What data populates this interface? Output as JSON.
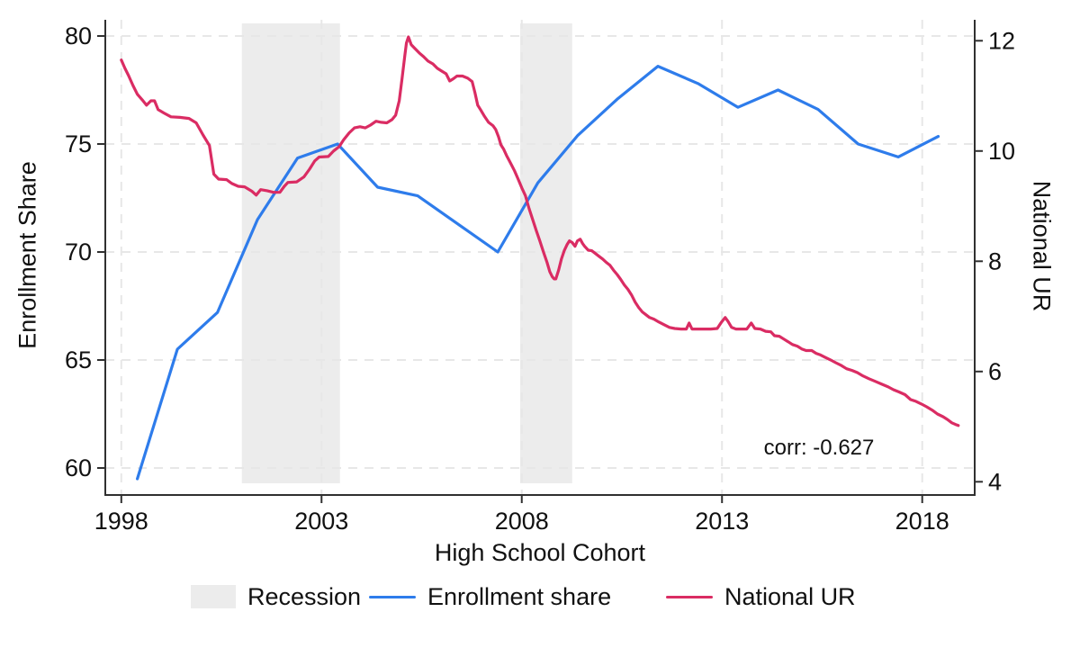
{
  "figure": {
    "axis_titles": {
      "left": "Enrollment Share",
      "right": "National UR",
      "bottom": "High School Cohort"
    },
    "annotation_text": "corr: -0.627",
    "legend": {
      "position": "bottom",
      "items": [
        {
          "kind": "swatch",
          "label": "Recession"
        },
        {
          "kind": "line",
          "label": "Enrollment share",
          "color_key": "enrollment"
        },
        {
          "kind": "line",
          "label": "National UR",
          "color_key": "ur"
        }
      ]
    },
    "colors": {
      "enrollment": "#2e7ceb",
      "ur": "#da2c63",
      "recession_band": "#ececec",
      "grid": "#e7e7e7",
      "axis": "#303030",
      "text": "#111111",
      "background": "#ffffff"
    }
  },
  "chart_data": {
    "type": "line",
    "title": "",
    "xlabel": "High School Cohort",
    "ylabel_left": "Enrollment Share",
    "ylabel_right": "National UR",
    "xlim": [
      1997.6,
      2019.31
    ],
    "x_ticks": [
      1998,
      2003,
      2008,
      2013,
      2018
    ],
    "left_axis": {
      "label": "Enrollment Share",
      "ticks": [
        60,
        65,
        70,
        75,
        80
      ],
      "lim": [
        58.75,
        80.75
      ]
    },
    "right_axis": {
      "label": "National UR",
      "ticks": [
        4,
        6,
        8,
        10,
        12
      ],
      "lim": [
        3.76,
        12.38
      ]
    },
    "grid": {
      "shown": true,
      "dashed": true
    },
    "legend_position": "bottom",
    "recession_bands": [
      [
        2001.01,
        2003.46
      ],
      [
        2007.96,
        2009.26
      ]
    ],
    "annotation": {
      "text": "corr: -0.627",
      "x": 2015.42,
      "y_left_axis": 60.9
    },
    "series": [
      {
        "name": "Enrollment share",
        "axis": "left",
        "color_key": "enrollment",
        "x": [
          1998.4,
          1999.4,
          2000.4,
          2001.4,
          2002.4,
          2003.4,
          2004.4,
          2005.4,
          2006.4,
          2007.4,
          2008.4,
          2009.4,
          2010.4,
          2011.4,
          2012.4,
          2013.4,
          2014.4,
          2015.4,
          2016.4,
          2017.4,
          2018.4
        ],
        "y": [
          59.5,
          65.5,
          67.2,
          71.5,
          74.35,
          75.0,
          73.0,
          72.6,
          71.3,
          70.0,
          73.2,
          75.4,
          77.1,
          78.6,
          77.8,
          76.7,
          77.5,
          76.6,
          75.0,
          74.4,
          75.35
        ]
      },
      {
        "name": "National UR",
        "axis": "right",
        "color_key": "ur",
        "x": [
          1998.0,
          1998.09,
          1998.18,
          1998.29,
          1998.4,
          1998.52,
          1998.63,
          1998.74,
          1998.83,
          1998.92,
          1999.06,
          1999.24,
          1999.46,
          1999.69,
          1999.87,
          2000.04,
          2000.2,
          2000.31,
          2000.43,
          2000.63,
          2000.76,
          2000.92,
          2001.08,
          2001.26,
          2001.37,
          2001.48,
          2001.64,
          2001.8,
          2001.96,
          2002.07,
          2002.16,
          2002.38,
          2002.56,
          2002.7,
          2002.83,
          2002.94,
          2003.17,
          2003.3,
          2003.44,
          2003.55,
          2003.69,
          2003.82,
          2003.96,
          2004.09,
          2004.22,
          2004.36,
          2004.49,
          2004.63,
          2004.76,
          2004.85,
          2004.94,
          2005.01,
          2005.08,
          2005.12,
          2005.17,
          2005.24,
          2005.33,
          2005.44,
          2005.55,
          2005.66,
          2005.78,
          2005.89,
          2006.0,
          2006.11,
          2006.2,
          2006.29,
          2006.38,
          2006.52,
          2006.65,
          2006.76,
          2006.83,
          2006.9,
          2006.97,
          2007.06,
          2007.17,
          2007.28,
          2007.35,
          2007.42,
          2007.48,
          2007.55,
          2007.62,
          2007.69,
          2007.75,
          2007.82,
          2007.91,
          2008.0,
          2008.09,
          2008.18,
          2008.27,
          2008.36,
          2008.45,
          2008.54,
          2008.63,
          2008.7,
          2008.76,
          2008.81,
          2008.85,
          2008.92,
          2008.99,
          2009.06,
          2009.13,
          2009.19,
          2009.26,
          2009.33,
          2009.39,
          2009.46,
          2009.52,
          2009.57,
          2009.66,
          2009.75,
          2009.84,
          2009.93,
          2010.02,
          2010.11,
          2010.2,
          2010.29,
          2010.38,
          2010.47,
          2010.56,
          2010.65,
          2010.74,
          2010.83,
          2010.92,
          2011.01,
          2011.1,
          2011.19,
          2011.3,
          2011.42,
          2011.55,
          2011.69,
          2011.82,
          2011.98,
          2012.11,
          2012.18,
          2012.25,
          2012.4,
          2012.56,
          2012.72,
          2012.88,
          2012.99,
          2013.08,
          2013.15,
          2013.24,
          2013.35,
          2013.48,
          2013.62,
          2013.73,
          2013.82,
          2013.96,
          2014.09,
          2014.22,
          2014.31,
          2014.43,
          2014.54,
          2014.65,
          2014.76,
          2014.88,
          2014.99,
          2015.1,
          2015.24,
          2015.35,
          2015.46,
          2015.57,
          2015.71,
          2015.84,
          2015.98,
          2016.11,
          2016.25,
          2016.38,
          2016.52,
          2016.67,
          2016.83,
          2016.99,
          2017.15,
          2017.28,
          2017.42,
          2017.57,
          2017.71,
          2017.84,
          2017.98,
          2018.11,
          2018.25,
          2018.38,
          2018.52,
          2018.63,
          2018.74,
          2018.83,
          2018.9
        ],
        "y": [
          11.65,
          11.5,
          11.37,
          11.19,
          11.03,
          10.93,
          10.83,
          10.91,
          10.91,
          10.75,
          10.69,
          10.62,
          10.61,
          10.59,
          10.51,
          10.29,
          10.1,
          9.58,
          9.49,
          9.48,
          9.41,
          9.36,
          9.35,
          9.27,
          9.2,
          9.3,
          9.28,
          9.25,
          9.25,
          9.36,
          9.43,
          9.44,
          9.53,
          9.67,
          9.82,
          9.89,
          9.9,
          10.0,
          10.08,
          10.2,
          10.33,
          10.42,
          10.44,
          10.42,
          10.47,
          10.54,
          10.52,
          10.51,
          10.57,
          10.65,
          10.91,
          11.31,
          11.73,
          11.96,
          12.07,
          11.93,
          11.86,
          11.78,
          11.71,
          11.63,
          11.58,
          11.5,
          11.45,
          11.4,
          11.27,
          11.31,
          11.36,
          11.36,
          11.32,
          11.26,
          11.06,
          10.83,
          10.75,
          10.64,
          10.52,
          10.46,
          10.39,
          10.26,
          10.11,
          10.03,
          9.92,
          9.82,
          9.74,
          9.64,
          9.49,
          9.33,
          9.19,
          8.96,
          8.76,
          8.56,
          8.37,
          8.17,
          7.98,
          7.81,
          7.72,
          7.68,
          7.68,
          7.84,
          8.04,
          8.19,
          8.3,
          8.37,
          8.34,
          8.27,
          8.37,
          8.4,
          8.32,
          8.27,
          8.2,
          8.19,
          8.14,
          8.09,
          8.04,
          7.98,
          7.93,
          7.84,
          7.76,
          7.67,
          7.57,
          7.49,
          7.39,
          7.26,
          7.16,
          7.08,
          7.03,
          6.98,
          6.95,
          6.9,
          6.85,
          6.8,
          6.78,
          6.77,
          6.77,
          6.88,
          6.77,
          6.77,
          6.77,
          6.77,
          6.78,
          6.9,
          6.98,
          6.91,
          6.8,
          6.77,
          6.77,
          6.77,
          6.88,
          6.78,
          6.77,
          6.73,
          6.72,
          6.65,
          6.64,
          6.59,
          6.54,
          6.49,
          6.46,
          6.41,
          6.38,
          6.38,
          6.33,
          6.3,
          6.26,
          6.21,
          6.16,
          6.11,
          6.05,
          6.02,
          5.98,
          5.92,
          5.87,
          5.82,
          5.77,
          5.72,
          5.67,
          5.63,
          5.58,
          5.49,
          5.46,
          5.41,
          5.36,
          5.3,
          5.23,
          5.18,
          5.13,
          5.07,
          5.04,
          5.02
        ]
      }
    ]
  }
}
